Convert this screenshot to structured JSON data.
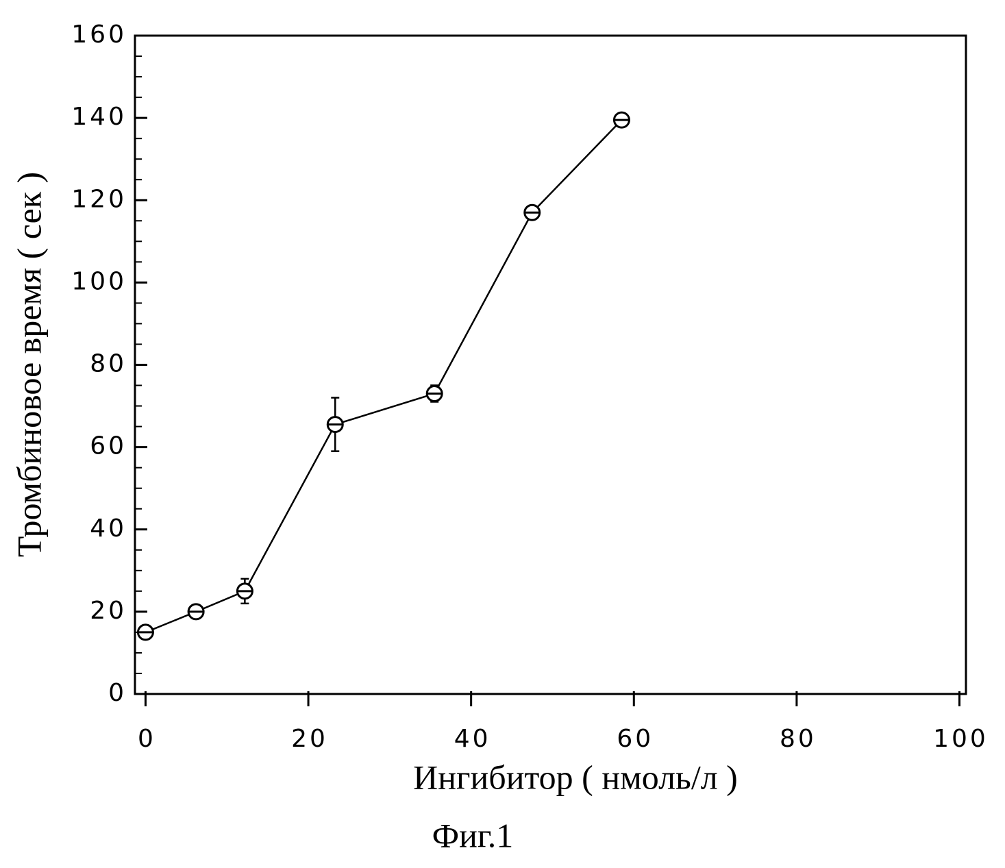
{
  "chart_data": {
    "type": "line",
    "xlabel": "Ингибитор ( нмоль/л )",
    "ylabel": "Тромбиновое время ( сек )",
    "caption": "Фиг.1",
    "x": [
      0,
      6.2,
      12.2,
      23.3,
      35.5,
      47.5,
      58.5
    ],
    "values": [
      15,
      20,
      25,
      65.5,
      73,
      117,
      139.5
    ],
    "errors": [
      1,
      0.5,
      3,
      6.5,
      2,
      1,
      0.5
    ],
    "color": "#000000",
    "xlim": [
      -1.3,
      100.8
    ],
    "xticks": [
      0,
      20,
      40,
      60,
      80,
      100
    ],
    "ylim": [
      0,
      160
    ],
    "yticks": [
      0,
      20,
      40,
      60,
      80,
      100,
      120,
      140,
      160
    ],
    "minor_yticks": [
      5,
      10,
      15,
      25,
      30,
      35,
      45,
      50,
      55,
      65,
      70,
      75,
      85,
      90,
      95,
      105,
      110,
      115,
      125,
      130,
      135,
      145,
      150,
      155
    ]
  }
}
